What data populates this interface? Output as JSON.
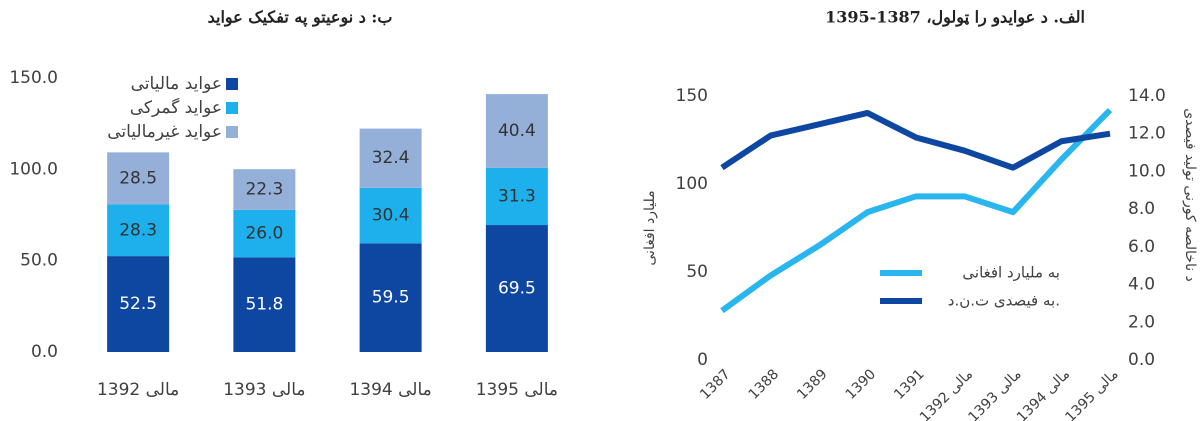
{
  "chart_data": [
    {
      "type": "stacked_bar",
      "title": "ب: د نوعیتو په تفکیک عواید",
      "categories": [
        "1392 مالی",
        "1393 مالی",
        "1394 مالی",
        "1395 مالی"
      ],
      "series": [
        {
          "name": "عواید مالیاتی",
          "color": "#0d47a1",
          "values": [
            52.5,
            51.8,
            59.5,
            69.5
          ],
          "value_labels": [
            "52.5",
            "51.8",
            "59.5",
            "69.5"
          ]
        },
        {
          "name": "عواید گمرکی",
          "color": "#1eb0ec",
          "values": [
            28.3,
            26.0,
            30.4,
            31.3
          ],
          "value_labels": [
            "28.3",
            "26.0",
            "30.4",
            "31.3"
          ]
        },
        {
          "name": "عواید غیرمالیاتی",
          "color": "#95b0d8",
          "values": [
            28.5,
            22.3,
            32.4,
            40.4
          ],
          "value_labels": [
            "28.5",
            "22.3",
            "32.4",
            "40.4"
          ]
        }
      ],
      "ylim": [
        0,
        150
      ],
      "yticks": [
        {
          "value": 0,
          "label": "0.0"
        },
        {
          "value": 50,
          "label": "50.0"
        },
        {
          "value": 100,
          "label": "100.0"
        },
        {
          "value": 150,
          "label": "150.0"
        }
      ],
      "legend": "upper left"
    },
    {
      "type": "line",
      "title": "الف. د عوایدو را ټولول، 1387-1395",
      "categories": [
        "1387",
        "1388",
        "1389",
        "1390",
        "1391",
        "1392 مالی",
        "1393 مالی",
        "1394 مالی",
        "1395 مالی"
      ],
      "ylabel": "ملیارد افغانی",
      "y2label": "د ناخالصه کورنی تولید فیصدی",
      "series": [
        {
          "name": "به ملیارد افغانی",
          "color": "#29b6ef",
          "values": [
            28,
            48,
            65,
            84,
            93,
            93,
            84,
            114,
            142
          ]
        },
        {
          "name": "به فیصدی ت.ن.د.",
          "color": "#0d47a1",
          "axis": "y2",
          "values": [
            10.2,
            11.9,
            12.5,
            13.1,
            11.8,
            11.1,
            10.2,
            11.6,
            12.0
          ]
        }
      ],
      "ylim": [
        0,
        150
      ],
      "yticks": [
        0,
        50,
        100,
        150
      ],
      "y2lim": [
        0,
        14
      ],
      "y2ticks": [
        {
          "value": 0,
          "label": "0.0"
        },
        {
          "value": 2,
          "label": "2.0"
        },
        {
          "value": 4,
          "label": "4.0"
        },
        {
          "value": 6,
          "label": "6.0"
        },
        {
          "value": 8,
          "label": "8.0"
        },
        {
          "value": 10,
          "label": "10.0"
        },
        {
          "value": 12,
          "label": "12.0"
        },
        {
          "value": 14,
          "label": "14.0"
        }
      ],
      "legend": "lower center"
    }
  ]
}
